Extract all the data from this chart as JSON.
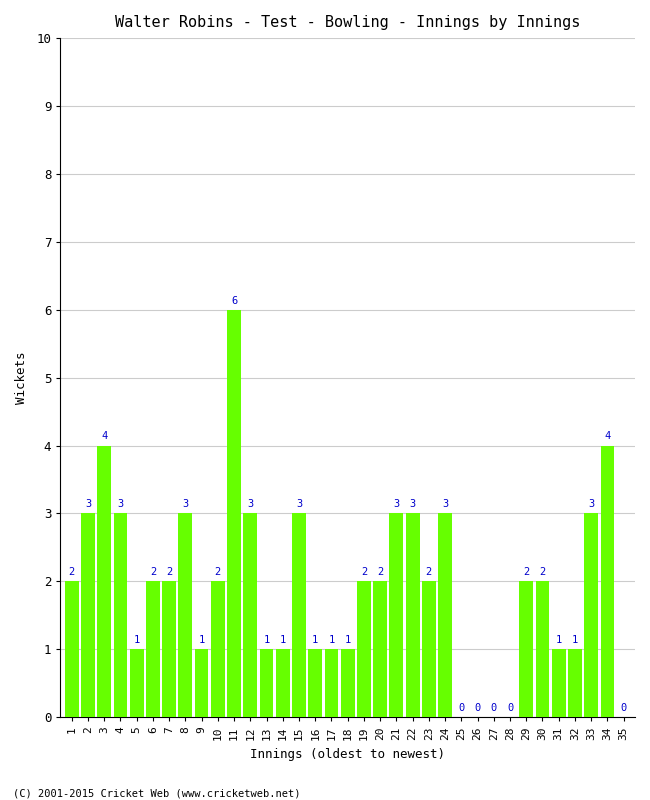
{
  "title": "Walter Robins - Test - Bowling - Innings by Innings",
  "xlabel": "Innings (oldest to newest)",
  "ylabel": "Wickets",
  "bar_color": "#66ff00",
  "label_color": "#0000cc",
  "background_color": "#ffffff",
  "grid_color": "#cccccc",
  "ylim": [
    0,
    10
  ],
  "yticks": [
    0,
    1,
    2,
    3,
    4,
    5,
    6,
    7,
    8,
    9,
    10
  ],
  "footnote": "(C) 2001-2015 Cricket Web (www.cricketweb.net)",
  "wickets": [
    2,
    3,
    4,
    3,
    1,
    2,
    2,
    3,
    1,
    2,
    6,
    3,
    1,
    1,
    3,
    1,
    1,
    1,
    2,
    2,
    3,
    3,
    2,
    3,
    0,
    0,
    0,
    0,
    2,
    2,
    1,
    1,
    3,
    4,
    0
  ]
}
